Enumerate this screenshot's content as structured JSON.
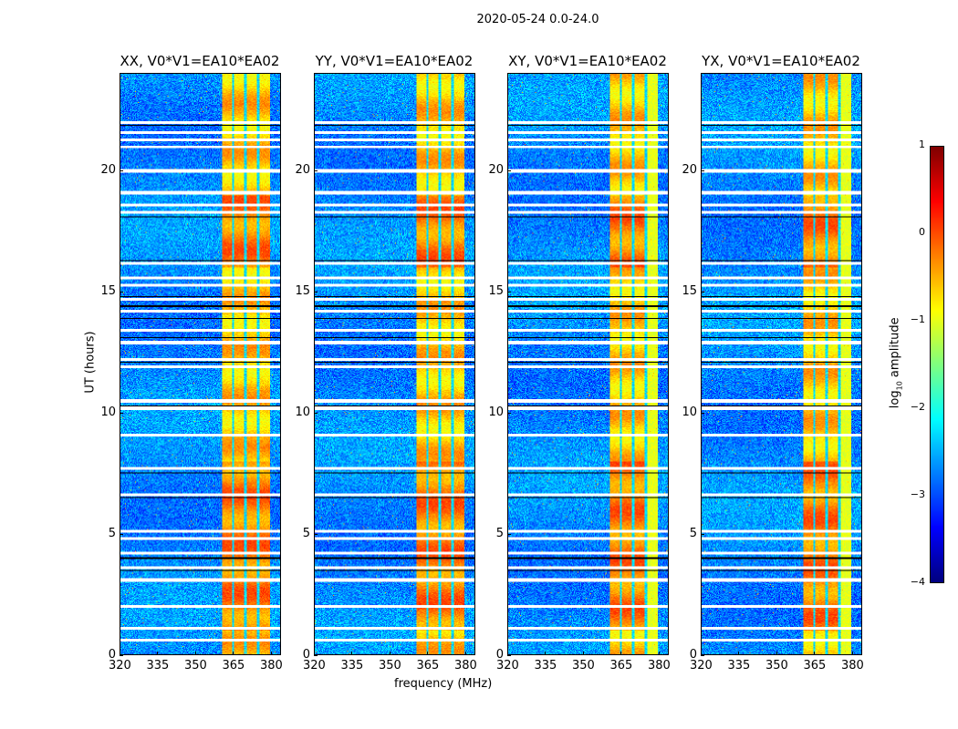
{
  "chart_data": {
    "type": "heatmap",
    "title": "2020-05-24 0.0-24.0",
    "xlabel": "frequency (MHz)",
    "ylabel": "UT (hours)",
    "xlim": [
      320,
      384
    ],
    "ylim": [
      0,
      24
    ],
    "xticks": [
      320,
      335,
      350,
      365,
      380
    ],
    "yticks": [
      0,
      5,
      10,
      15,
      20
    ],
    "panels": [
      {
        "title": "XX, V0*V1=EA10*EA02"
      },
      {
        "title": "YY, V0*V1=EA10*EA02"
      },
      {
        "title": "XY, V0*V1=EA10*EA02"
      },
      {
        "title": "YX, V0*V1=EA10*EA02"
      }
    ],
    "colorbar": {
      "label_main": "log",
      "label_sub": "10",
      "label_rest": " amplitude",
      "colormap": "jet",
      "range": [
        -4,
        1
      ],
      "ticks": [
        1,
        0,
        -1,
        -2,
        -3,
        -4
      ],
      "tick_labels": [
        "1",
        "0",
        "−1",
        "−2",
        "−3",
        "−4"
      ]
    },
    "background_level": -2.7,
    "rfi_band_mhz": [
      360.5,
      380
    ],
    "rfi_subband_gaps_mhz": [
      365,
      370,
      375
    ],
    "rfi_level": -0.6,
    "flagged_hours": [
      22.0,
      21.6,
      21.3,
      21.0,
      20.0,
      19.1,
      18.6,
      18.3,
      16.2,
      15.6,
      15.3,
      14.7,
      14.2,
      13.4,
      12.9,
      12.2,
      11.9,
      10.5,
      10.2,
      9.1,
      7.7,
      6.6,
      5.1,
      4.8,
      4.2,
      3.6,
      3.1,
      2.0,
      1.1,
      0.6
    ],
    "dark_lines_hours": [
      21.9,
      18.1,
      16.3,
      14.8,
      14.4,
      13.9,
      13.1,
      12.1,
      10.3,
      7.5,
      6.5,
      4.0,
      3.5
    ]
  }
}
